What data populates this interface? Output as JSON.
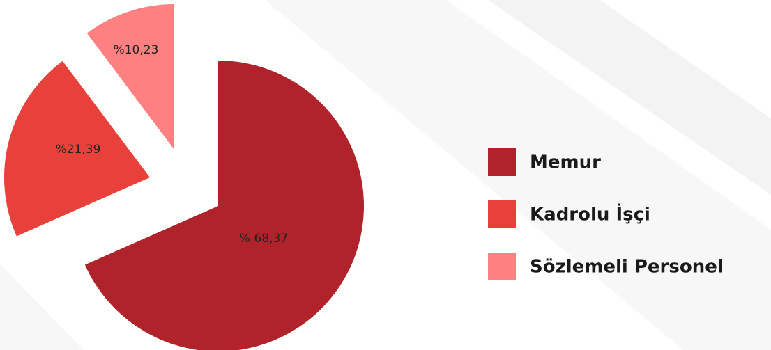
{
  "chart_data": {
    "type": "pie",
    "categories": [
      "Memur",
      "Kadrolu İşçi",
      "Sözlemeli Personel"
    ],
    "values": [
      68.37,
      21.39,
      10.23
    ],
    "value_labels": [
      "% 68,37",
      "%21,39",
      "%10,23"
    ],
    "colors": [
      "#b0232a",
      "#e8413b",
      "#ff8080"
    ],
    "legend": "right"
  }
}
